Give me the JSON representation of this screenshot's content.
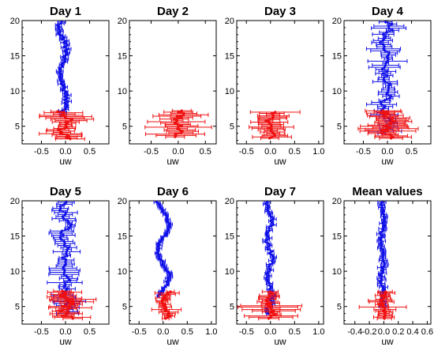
{
  "colors": {
    "blue": "#1010e8",
    "red": "#f01010",
    "axis": "#000000"
  },
  "chart_data": [
    {
      "type": "scatter",
      "title": "Day 1",
      "xlabel": "uw",
      "xlim": [
        -0.9,
        0.9
      ],
      "ylim": [
        2.5,
        20
      ],
      "xticks": [
        -0.5,
        0,
        0.5
      ],
      "xtick_labels": [
        "-0.5",
        "0.0",
        "0.5"
      ],
      "yticks": [
        5,
        10,
        15,
        20
      ],
      "ytick_labels": [
        "5",
        "10",
        "15",
        "20"
      ],
      "series": [
        {
          "color": "blue",
          "y_start": 6.5,
          "y_end": 19.8,
          "points": 60,
          "base": -0.05,
          "amp": 0.07,
          "freq": 0.9,
          "xerr": 0.05,
          "yerr": 0.2,
          "noise": 0.05,
          "extra_err": 0
        },
        {
          "color": "red",
          "y_start": 3.2,
          "y_end": 7.1,
          "points": 22,
          "base": 0.0,
          "amp": 0.08,
          "freq": 2.5,
          "xerr": 0.22,
          "yerr": 0.2,
          "noise": 0.1,
          "extra_err": 0.3
        }
      ]
    },
    {
      "type": "scatter",
      "title": "Day 2",
      "xlabel": "uw",
      "xlim": [
        -0.9,
        0.7
      ],
      "ylim": [
        2.5,
        20
      ],
      "xticks": [
        -0.5,
        0,
        0.5
      ],
      "xtick_labels": [
        "-0.5",
        "0.0",
        "0.5"
      ],
      "yticks": [
        5,
        10,
        15,
        20
      ],
      "ytick_labels": [
        "5",
        "10",
        "15",
        "20"
      ],
      "series": [
        {
          "color": "red",
          "y_start": 3.5,
          "y_end": 7.2,
          "points": 20,
          "base": 0.0,
          "amp": 0.06,
          "freq": 3.0,
          "xerr": 0.2,
          "yerr": 0.2,
          "noise": 0.08,
          "extra_err": 0.35
        }
      ]
    },
    {
      "type": "scatter",
      "title": "Day 3",
      "xlabel": "uw",
      "xlim": [
        -0.7,
        1.1
      ],
      "ylim": [
        2.5,
        20
      ],
      "xticks": [
        -0.5,
        0,
        0.5,
        1
      ],
      "xtick_labels": [
        "-0.5",
        "0.0",
        "0.5",
        "1.0"
      ],
      "yticks": [
        5,
        10,
        15,
        20
      ],
      "ytick_labels": [
        "5",
        "10",
        "15",
        "20"
      ],
      "series": [
        {
          "color": "red",
          "y_start": 3.3,
          "y_end": 7.0,
          "points": 22,
          "base": 0.0,
          "amp": 0.05,
          "freq": 2.0,
          "xerr": 0.22,
          "yerr": 0.2,
          "noise": 0.06,
          "extra_err": 0.45
        }
      ]
    },
    {
      "type": "scatter",
      "title": "Day 4",
      "xlabel": "uw",
      "xlim": [
        -0.9,
        0.9
      ],
      "ylim": [
        2.5,
        20
      ],
      "xticks": [
        -0.5,
        0,
        0.5
      ],
      "xtick_labels": [
        "-0.5",
        "0.0",
        "0.5"
      ],
      "yticks": [
        5,
        10,
        15,
        20
      ],
      "ytick_labels": [
        "5",
        "10",
        "15",
        "20"
      ],
      "series": [
        {
          "color": "blue",
          "y_start": 4.0,
          "y_end": 19.8,
          "points": 55,
          "base": -0.02,
          "amp": 0.06,
          "freq": 1.4,
          "xerr": 0.12,
          "yerr": 0.25,
          "noise": 0.08,
          "extra_err": 0.25
        },
        {
          "color": "red",
          "y_start": 3.3,
          "y_end": 7.2,
          "points": 24,
          "base": 0.0,
          "amp": 0.07,
          "freq": 2.5,
          "xerr": 0.25,
          "yerr": 0.2,
          "noise": 0.1,
          "extra_err": 0.35
        }
      ]
    },
    {
      "type": "scatter",
      "title": "Day 5",
      "xlabel": "uw",
      "xlim": [
        -0.9,
        0.9
      ],
      "ylim": [
        2.5,
        20
      ],
      "xticks": [
        -0.5,
        0,
        0.5
      ],
      "xtick_labels": [
        "-0.5",
        "0.0",
        "0.5"
      ],
      "yticks": [
        5,
        10,
        15,
        20
      ],
      "ytick_labels": [
        "5",
        "10",
        "15",
        "20"
      ],
      "series": [
        {
          "color": "blue",
          "y_start": 4.0,
          "y_end": 19.8,
          "points": 55,
          "base": 0.0,
          "amp": 0.06,
          "freq": 1.6,
          "xerr": 0.13,
          "yerr": 0.25,
          "noise": 0.08,
          "extra_err": 0.2
        },
        {
          "color": "red",
          "y_start": 3.3,
          "y_end": 7.2,
          "points": 24,
          "base": 0.02,
          "amp": 0.08,
          "freq": 2.5,
          "xerr": 0.25,
          "yerr": 0.2,
          "noise": 0.12,
          "extra_err": 0.3
        }
      ]
    },
    {
      "type": "scatter",
      "title": "Day 6",
      "xlabel": "uw",
      "xlim": [
        -0.7,
        1.1
      ],
      "ylim": [
        2.5,
        20
      ],
      "xticks": [
        -0.5,
        0,
        0.5,
        1
      ],
      "xtick_labels": [
        "-0.5",
        "0.0",
        "0.5",
        "1.0"
      ],
      "yticks": [
        5,
        10,
        15,
        20
      ],
      "ytick_labels": [
        "5",
        "10",
        "15",
        "20"
      ],
      "series": [
        {
          "color": "blue",
          "y_start": 6.5,
          "y_end": 19.8,
          "points": 60,
          "base": 0.0,
          "amp": 0.12,
          "freq": 0.85,
          "xerr": 0.04,
          "yerr": 0.2,
          "noise": 0.03,
          "extra_err": 0
        },
        {
          "color": "red",
          "y_start": 3.3,
          "y_end": 7.1,
          "points": 22,
          "base": 0.05,
          "amp": 0.06,
          "freq": 2.0,
          "xerr": 0.1,
          "yerr": 0.2,
          "noise": 0.06,
          "extra_err": 0.25
        }
      ]
    },
    {
      "type": "scatter",
      "title": "Day 7",
      "xlabel": "uw",
      "xlim": [
        -0.7,
        1.1
      ],
      "ylim": [
        2.5,
        20
      ],
      "xticks": [
        -0.5,
        0,
        0.5,
        1
      ],
      "xtick_labels": [
        "-0.5",
        "0.0",
        "0.5",
        "1.0"
      ],
      "yticks": [
        5,
        10,
        15,
        20
      ],
      "ytick_labels": [
        "5",
        "10",
        "15",
        "20"
      ],
      "series": [
        {
          "color": "blue",
          "y_start": 4.0,
          "y_end": 19.8,
          "points": 60,
          "base": -0.02,
          "amp": 0.05,
          "freq": 1.2,
          "xerr": 0.05,
          "yerr": 0.2,
          "noise": 0.04,
          "extra_err": 0
        },
        {
          "color": "red",
          "y_start": 3.3,
          "y_end": 7.1,
          "points": 22,
          "base": 0.0,
          "amp": 0.05,
          "freq": 2.0,
          "xerr": 0.15,
          "yerr": 0.2,
          "noise": 0.06,
          "extra_err": 0.55
        }
      ]
    },
    {
      "type": "scatter",
      "title": "Mean values",
      "xlabel": "uw",
      "xlim": [
        -0.55,
        0.65
      ],
      "ylim": [
        2.5,
        20
      ],
      "xticks": [
        -0.4,
        -0.2,
        0,
        0.2,
        0.4,
        0.6
      ],
      "xtick_labels": [
        "-0.4",
        "-0.2",
        "0.0",
        "0.2",
        "0.4",
        "0.6"
      ],
      "yticks": [
        5,
        10,
        15,
        20
      ],
      "ytick_labels": [
        "5",
        "10",
        "15",
        "20"
      ],
      "series": [
        {
          "color": "blue",
          "y_start": 5.0,
          "y_end": 19.8,
          "points": 60,
          "base": -0.02,
          "amp": 0.02,
          "freq": 1.2,
          "xerr": 0.04,
          "yerr": 0.2,
          "noise": 0.02,
          "extra_err": 0
        },
        {
          "color": "red",
          "y_start": 3.3,
          "y_end": 7.1,
          "points": 22,
          "base": -0.01,
          "amp": 0.02,
          "freq": 2.0,
          "xerr": 0.08,
          "yerr": 0.2,
          "noise": 0.03,
          "extra_err": 0.35
        }
      ]
    }
  ]
}
